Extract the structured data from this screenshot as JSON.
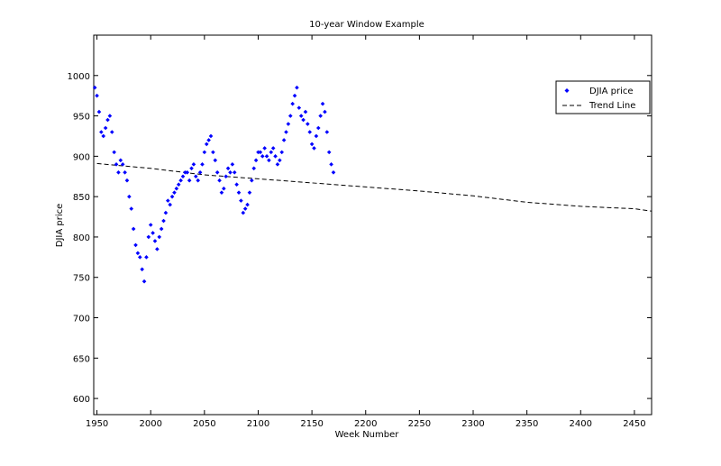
{
  "chart_data": {
    "type": "scatter",
    "title": "10-year Window Example",
    "xlabel": "Week Number",
    "ylabel": "DJIA price",
    "xlim": [
      1947,
      2466
    ],
    "ylim": [
      580,
      1050
    ],
    "xticks": [
      1950,
      2000,
      2050,
      2100,
      2150,
      2200,
      2250,
      2300,
      2350,
      2400,
      2450
    ],
    "yticks": [
      600,
      650,
      700,
      750,
      800,
      850,
      900,
      950,
      1000
    ],
    "grid": false,
    "legend_position": "top-right",
    "colors": {
      "scatter": "#0000ff",
      "trend": "#000000",
      "axes": "#000000",
      "background": "#ffffff"
    },
    "series": [
      {
        "name": "DJIA price",
        "kind": "scatter",
        "marker": "diamond",
        "points": [
          [
            1948,
            985
          ],
          [
            1950,
            975
          ],
          [
            1952,
            955
          ],
          [
            1954,
            930
          ],
          [
            1956,
            925
          ],
          [
            1958,
            935
          ],
          [
            1960,
            945
          ],
          [
            1962,
            950
          ],
          [
            1964,
            930
          ],
          [
            1966,
            905
          ],
          [
            1968,
            890
          ],
          [
            1970,
            880
          ],
          [
            1972,
            895
          ],
          [
            1974,
            890
          ],
          [
            1976,
            880
          ],
          [
            1978,
            870
          ],
          [
            1980,
            850
          ],
          [
            1982,
            835
          ],
          [
            1984,
            810
          ],
          [
            1986,
            790
          ],
          [
            1988,
            780
          ],
          [
            1990,
            775
          ],
          [
            1992,
            760
          ],
          [
            1994,
            745
          ],
          [
            1996,
            775
          ],
          [
            1998,
            800
          ],
          [
            2000,
            815
          ],
          [
            2002,
            805
          ],
          [
            2004,
            795
          ],
          [
            2006,
            785
          ],
          [
            2008,
            800
          ],
          [
            2010,
            810
          ],
          [
            2012,
            820
          ],
          [
            2014,
            830
          ],
          [
            2016,
            845
          ],
          [
            2018,
            840
          ],
          [
            2020,
            850
          ],
          [
            2022,
            855
          ],
          [
            2024,
            860
          ],
          [
            2026,
            865
          ],
          [
            2028,
            870
          ],
          [
            2030,
            875
          ],
          [
            2032,
            880
          ],
          [
            2034,
            880
          ],
          [
            2036,
            870
          ],
          [
            2038,
            885
          ],
          [
            2040,
            890
          ],
          [
            2042,
            875
          ],
          [
            2044,
            870
          ],
          [
            2046,
            880
          ],
          [
            2048,
            890
          ],
          [
            2050,
            905
          ],
          [
            2052,
            915
          ],
          [
            2054,
            920
          ],
          [
            2056,
            925
          ],
          [
            2058,
            905
          ],
          [
            2060,
            895
          ],
          [
            2062,
            880
          ],
          [
            2064,
            870
          ],
          [
            2066,
            855
          ],
          [
            2068,
            860
          ],
          [
            2070,
            875
          ],
          [
            2072,
            885
          ],
          [
            2074,
            880
          ],
          [
            2076,
            890
          ],
          [
            2078,
            880
          ],
          [
            2080,
            865
          ],
          [
            2082,
            855
          ],
          [
            2084,
            845
          ],
          [
            2086,
            830
          ],
          [
            2088,
            835
          ],
          [
            2090,
            840
          ],
          [
            2092,
            855
          ],
          [
            2094,
            870
          ],
          [
            2096,
            885
          ],
          [
            2098,
            895
          ],
          [
            2100,
            905
          ],
          [
            2102,
            905
          ],
          [
            2104,
            900
          ],
          [
            2106,
            910
          ],
          [
            2108,
            900
          ],
          [
            2110,
            895
          ],
          [
            2112,
            905
          ],
          [
            2114,
            910
          ],
          [
            2116,
            900
          ],
          [
            2118,
            890
          ],
          [
            2120,
            895
          ],
          [
            2122,
            905
          ],
          [
            2124,
            920
          ],
          [
            2126,
            930
          ],
          [
            2128,
            940
          ],
          [
            2130,
            950
          ],
          [
            2132,
            965
          ],
          [
            2134,
            975
          ],
          [
            2136,
            985
          ],
          [
            2138,
            960
          ],
          [
            2140,
            950
          ],
          [
            2142,
            945
          ],
          [
            2144,
            955
          ],
          [
            2146,
            940
          ],
          [
            2148,
            930
          ],
          [
            2150,
            915
          ],
          [
            2152,
            910
          ],
          [
            2154,
            925
          ],
          [
            2156,
            935
          ],
          [
            2158,
            950
          ],
          [
            2160,
            965
          ],
          [
            2162,
            955
          ],
          [
            2164,
            930
          ],
          [
            2166,
            905
          ],
          [
            2168,
            890
          ],
          [
            2170,
            880
          ]
        ]
      },
      {
        "name": "Trend Line",
        "kind": "line",
        "dash": "dashed",
        "x": [
          1950,
          2000,
          2050,
          2100,
          2150,
          2200,
          2250,
          2300,
          2350,
          2400,
          2450,
          2466
        ],
        "y": [
          891,
          885,
          877,
          872,
          867,
          862,
          857,
          851,
          843,
          838,
          835,
          832
        ]
      }
    ]
  }
}
